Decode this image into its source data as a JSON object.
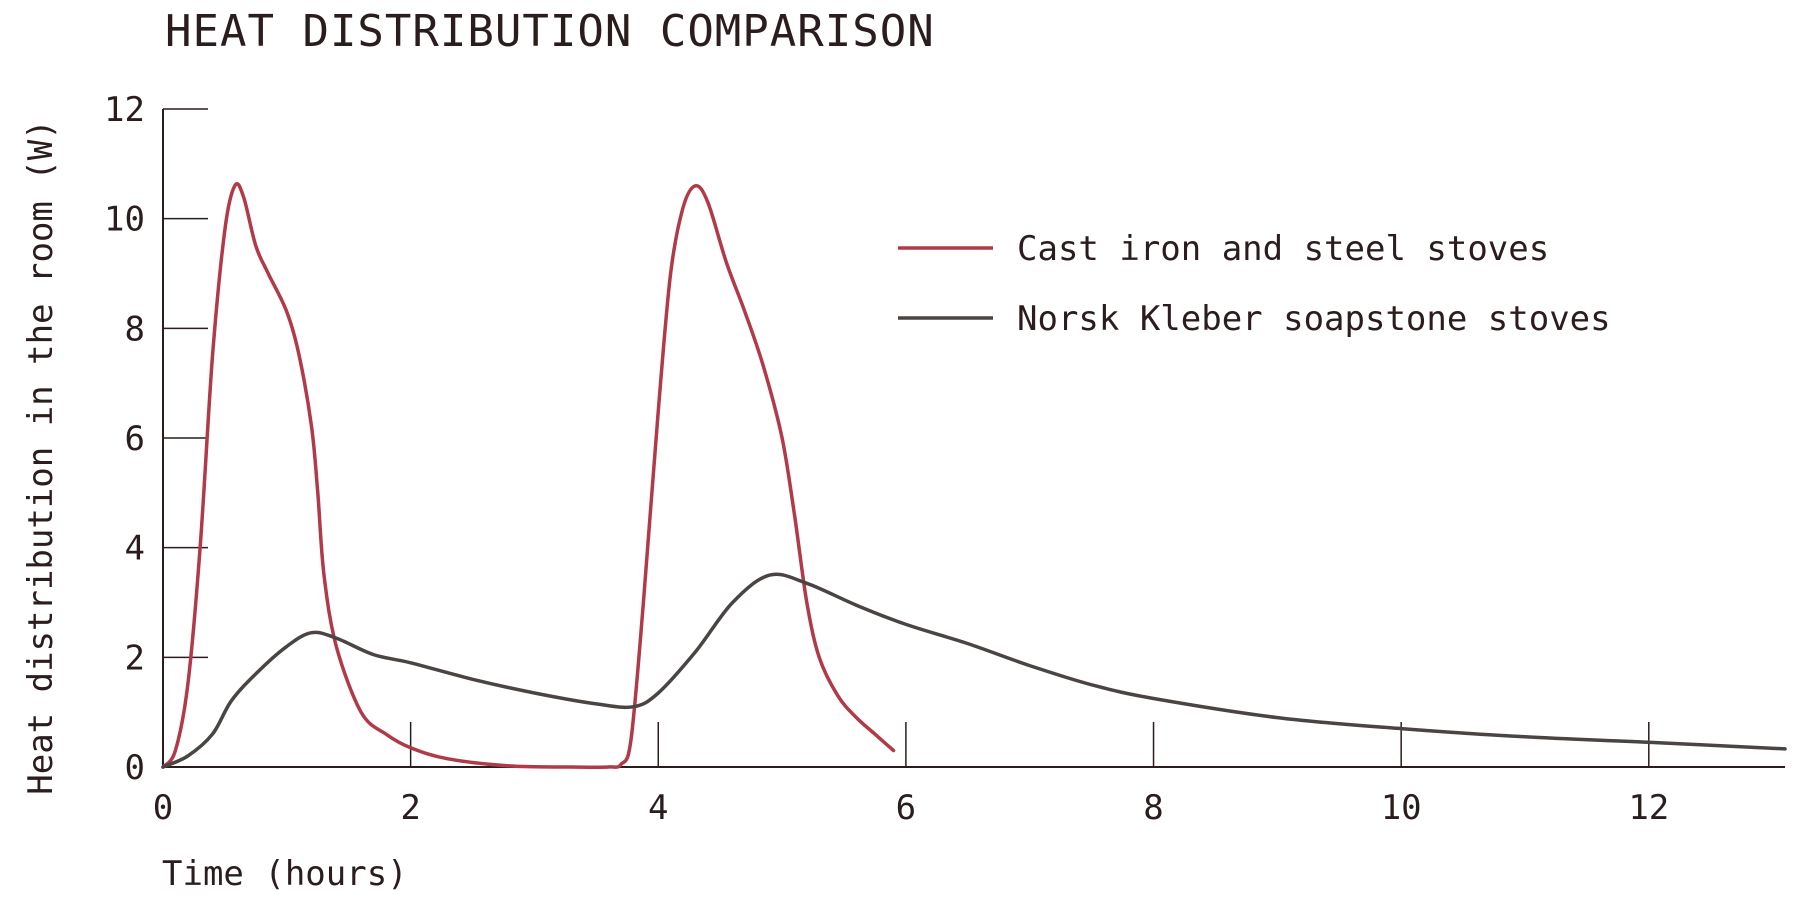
{
  "chart_data": {
    "type": "line",
    "title": "HEAT DISTRIBUTION COMPARISON",
    "xlabel": "Time (hours)",
    "ylabel": "Heat distribution in the room (W)",
    "xlim": [
      0,
      13.1
    ],
    "ylim": [
      0,
      12
    ],
    "xticks": [
      0,
      2,
      4,
      6,
      8,
      10,
      12
    ],
    "yticks": [
      0,
      2,
      4,
      6,
      8,
      10,
      12
    ],
    "grid": false,
    "legend_position": "top-right",
    "series": [
      {
        "name": "Cast iron and steel stoves",
        "color": "#b03a48",
        "points": [
          [
            0,
            0
          ],
          [
            0.1,
            0.3
          ],
          [
            0.2,
            1.5
          ],
          [
            0.3,
            4.0
          ],
          [
            0.4,
            7.5
          ],
          [
            0.5,
            9.8
          ],
          [
            0.58,
            10.6
          ],
          [
            0.65,
            10.4
          ],
          [
            0.75,
            9.5
          ],
          [
            0.85,
            9.0
          ],
          [
            1.0,
            8.3
          ],
          [
            1.1,
            7.5
          ],
          [
            1.2,
            6.2
          ],
          [
            1.25,
            5.0
          ],
          [
            1.3,
            3.5
          ],
          [
            1.4,
            2.2
          ],
          [
            1.6,
            1.0
          ],
          [
            1.8,
            0.6
          ],
          [
            2.0,
            0.35
          ],
          [
            2.3,
            0.15
          ],
          [
            2.8,
            0.02
          ],
          [
            3.3,
            0.0
          ],
          [
            3.6,
            0.0
          ],
          [
            3.7,
            0.05
          ],
          [
            3.78,
            0.5
          ],
          [
            3.88,
            3.0
          ],
          [
            4.0,
            6.5
          ],
          [
            4.1,
            9.0
          ],
          [
            4.2,
            10.2
          ],
          [
            4.3,
            10.6
          ],
          [
            4.4,
            10.3
          ],
          [
            4.55,
            9.2
          ],
          [
            4.7,
            8.3
          ],
          [
            4.85,
            7.3
          ],
          [
            5.0,
            6.0
          ],
          [
            5.1,
            4.6
          ],
          [
            5.2,
            3.0
          ],
          [
            5.3,
            2.0
          ],
          [
            5.45,
            1.3
          ],
          [
            5.6,
            0.9
          ],
          [
            5.75,
            0.6
          ],
          [
            5.9,
            0.3
          ]
        ]
      },
      {
        "name": "Norsk Kleber soapstone stoves",
        "color": "#4a4542",
        "points": [
          [
            0,
            0
          ],
          [
            0.2,
            0.2
          ],
          [
            0.4,
            0.6
          ],
          [
            0.55,
            1.2
          ],
          [
            0.75,
            1.7
          ],
          [
            1.0,
            2.2
          ],
          [
            1.2,
            2.45
          ],
          [
            1.4,
            2.35
          ],
          [
            1.7,
            2.05
          ],
          [
            2.0,
            1.9
          ],
          [
            2.5,
            1.6
          ],
          [
            3.0,
            1.35
          ],
          [
            3.5,
            1.15
          ],
          [
            3.8,
            1.1
          ],
          [
            4.0,
            1.35
          ],
          [
            4.3,
            2.1
          ],
          [
            4.6,
            3.0
          ],
          [
            4.9,
            3.5
          ],
          [
            5.2,
            3.35
          ],
          [
            5.6,
            2.95
          ],
          [
            6.0,
            2.6
          ],
          [
            6.5,
            2.25
          ],
          [
            7.0,
            1.85
          ],
          [
            7.5,
            1.5
          ],
          [
            8.0,
            1.25
          ],
          [
            9.0,
            0.9
          ],
          [
            10.0,
            0.7
          ],
          [
            11.0,
            0.55
          ],
          [
            12.0,
            0.45
          ],
          [
            13.1,
            0.33
          ]
        ]
      }
    ]
  }
}
